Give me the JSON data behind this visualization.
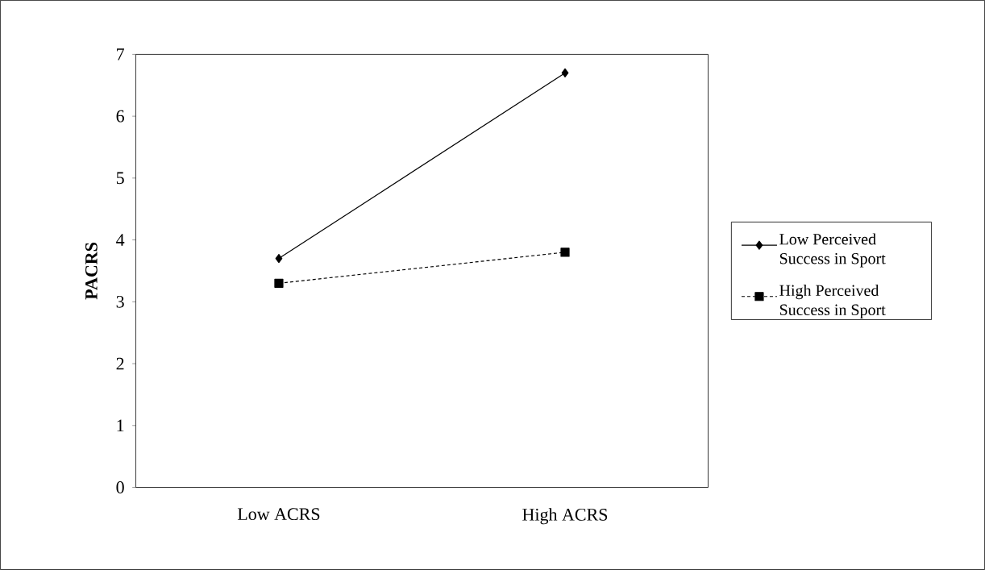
{
  "chart_data": {
    "type": "line",
    "ylabel": "PACRS",
    "categories": [
      "Low ACRS",
      "High ACRS"
    ],
    "ylim": [
      0,
      7
    ],
    "yticks": [
      0,
      1,
      2,
      3,
      4,
      5,
      6,
      7
    ],
    "grid": false,
    "legend": "right",
    "series": [
      {
        "name": "Low Perceived Success in Sport",
        "color": "#000000",
        "values": [
          3.7,
          6.7
        ],
        "marker": "diamond",
        "line_style": "solid"
      },
      {
        "name": "High Perceived Success in Sport",
        "color": "#000000",
        "values": [
          3.3,
          3.8
        ],
        "marker": "square",
        "line_style": "dashed"
      }
    ]
  }
}
